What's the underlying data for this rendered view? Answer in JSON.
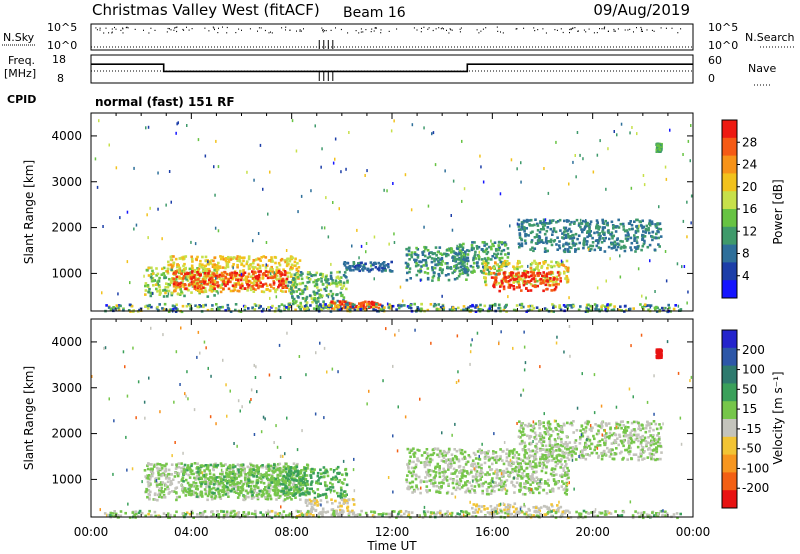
{
  "header": {
    "title": "Christmas Valley West (fitACF)",
    "beam": "Beam 16",
    "date": "09/Aug/2019"
  },
  "nsky_panel": {
    "left_label": "N.Sky",
    "right_label": "N.Search",
    "left_ticks": [
      "10^5",
      "10^0"
    ],
    "right_ticks": [
      "10^5",
      "10^0"
    ]
  },
  "freq_panel": {
    "left_label_1": "Freq.",
    "left_label_2": "[MHz]",
    "left_ticks": [
      "18",
      "8"
    ],
    "right_label": "Nave",
    "right_ticks": [
      "60",
      "0"
    ],
    "cpid_label": "CPID",
    "mode_text": "normal (fast) 151 RF"
  },
  "colors": {
    "power": [
      "#1515ff",
      "#1c3ea8",
      "#2e6f9a",
      "#3f9a6b",
      "#67c343",
      "#c7e04a",
      "#f2c21c",
      "#f79319",
      "#f55a15",
      "#ee1a12"
    ],
    "velocity": [
      "#2424cc",
      "#2d57a8",
      "#2e7a6e",
      "#3aa05a",
      "#76c64a",
      "#c4c4bc",
      "#f2c434",
      "#f7961f",
      "#f35f13",
      "#e81212"
    ]
  },
  "chart_data": [
    {
      "type": "heatmap",
      "name": "Power",
      "xlabel": "Time UT",
      "ylabel": "Slant Range [km]",
      "x_ticks": [
        "00:00",
        "04:00",
        "08:00",
        "12:00",
        "16:00",
        "20:00",
        "00:00"
      ],
      "xlim_hours": [
        0,
        24
      ],
      "y_ticks": [
        "1000",
        "2000",
        "3000",
        "4000"
      ],
      "ylim_km": [
        180,
        4500
      ],
      "colorbar_label": "Power [dB]",
      "colorbar_ticks": [
        "4",
        "8",
        "12",
        "16",
        "20",
        "24",
        "28"
      ],
      "colorbar_range": [
        0,
        30
      ],
      "scatter_regions": [
        {
          "x": [
            2.1,
            5.0
          ],
          "y": [
            520,
            1160
          ],
          "value": [
            10,
            19
          ]
        },
        {
          "x": [
            3.0,
            8.3
          ],
          "y": [
            620,
            1400
          ],
          "value": [
            16,
            22
          ]
        },
        {
          "x": [
            3.2,
            7.8
          ],
          "y": [
            690,
            1080
          ],
          "value": [
            24,
            30
          ]
        },
        {
          "x": [
            7.8,
            10.2
          ],
          "y": [
            240,
            1060
          ],
          "value": [
            8,
            18
          ]
        },
        {
          "x": [
            10.0,
            12.0
          ],
          "y": [
            1060,
            1280
          ],
          "value": [
            4,
            10
          ]
        },
        {
          "x": [
            12.5,
            15.0
          ],
          "y": [
            860,
            1600
          ],
          "value": [
            6,
            14
          ]
        },
        {
          "x": [
            14.6,
            16.6
          ],
          "y": [
            1000,
            1720
          ],
          "value": [
            6,
            15
          ]
        },
        {
          "x": [
            15.6,
            19.0
          ],
          "y": [
            760,
            1300
          ],
          "value": [
            14,
            22
          ]
        },
        {
          "x": [
            15.9,
            18.7
          ],
          "y": [
            640,
            1060
          ],
          "value": [
            24,
            30
          ]
        },
        {
          "x": [
            17.0,
            22.7
          ],
          "y": [
            1500,
            2200
          ],
          "value": [
            6,
            12
          ]
        },
        {
          "x": [
            9.5,
            11.5
          ],
          "y": [
            250,
            420
          ],
          "value": [
            24,
            30
          ]
        },
        {
          "x": [
            0.5,
            23.5
          ],
          "y": [
            190,
            360
          ],
          "value": [
            2,
            20
          ]
        },
        {
          "x": [
            0.0,
            24.0
          ],
          "y": [
            200,
            4400
          ],
          "value": [
            2,
            20
          ]
        },
        {
          "x": [
            22.5,
            22.7
          ],
          "y": [
            3680,
            3860
          ],
          "value": [
            10,
            14
          ]
        }
      ]
    },
    {
      "type": "heatmap",
      "name": "Velocity",
      "xlabel": "Time UT",
      "ylabel": "Slant Range [km]",
      "x_ticks": [
        "00:00",
        "04:00",
        "08:00",
        "12:00",
        "16:00",
        "20:00",
        "00:00"
      ],
      "xlim_hours": [
        0,
        24
      ],
      "y_ticks": [
        "1000",
        "2000",
        "3000",
        "4000"
      ],
      "ylim_km": [
        180,
        4500
      ],
      "colorbar_label": "Velocity [m s⁻¹]",
      "colorbar_ticks": [
        "200",
        "100",
        "50",
        "15",
        "-15",
        "-50",
        "-100",
        "-200"
      ],
      "colorbar_range": [
        -250,
        250
      ],
      "scatter_regions": [
        {
          "x": [
            2.1,
            8.3
          ],
          "y": [
            560,
            1380
          ],
          "value": [
            -14,
            14
          ]
        },
        {
          "x": [
            3.6,
            8.6
          ],
          "y": [
            650,
            1350
          ],
          "value": [
            16,
            60
          ]
        },
        {
          "x": [
            7.6,
            10.2
          ],
          "y": [
            600,
            1300
          ],
          "value": [
            20,
            100
          ]
        },
        {
          "x": [
            8.5,
            10.5
          ],
          "y": [
            240,
            600
          ],
          "value": [
            -60,
            -20
          ]
        },
        {
          "x": [
            12.5,
            19.0
          ],
          "y": [
            700,
            1700
          ],
          "value": [
            -14,
            14
          ]
        },
        {
          "x": [
            17.0,
            22.7
          ],
          "y": [
            1450,
            2300
          ],
          "value": [
            -14,
            14
          ]
        },
        {
          "x": [
            15.0,
            19.0
          ],
          "y": [
            260,
            500
          ],
          "value": [
            -60,
            -20
          ]
        },
        {
          "x": [
            0.5,
            23.5
          ],
          "y": [
            190,
            340
          ],
          "value": [
            -60,
            60
          ]
        },
        {
          "x": [
            0.0,
            24.0
          ],
          "y": [
            200,
            4400
          ],
          "value": [
            -200,
            200
          ]
        },
        {
          "x": [
            22.5,
            22.7
          ],
          "y": [
            3680,
            3860
          ],
          "value": [
            -230,
            -210
          ]
        }
      ]
    },
    {
      "type": "line",
      "name": "N.Sky",
      "xlim_hours": [
        0,
        24
      ],
      "note_values_log10": {
        "typical": 4.2,
        "min": 3.6,
        "max": 4.9
      },
      "gap_hours": [
        9.1,
        9.8
      ]
    },
    {
      "type": "line",
      "name": "Freq",
      "xlim_hours": [
        0,
        24
      ],
      "ylim": [
        8,
        18
      ],
      "segments": [
        {
          "x": [
            0.0,
            2.9
          ],
          "y": 15
        },
        {
          "x": [
            2.9,
            15.0
          ],
          "y": 12
        },
        {
          "x": [
            15.0,
            24.0
          ],
          "y": 15
        }
      ],
      "nave": {
        "typical": 25
      }
    }
  ]
}
